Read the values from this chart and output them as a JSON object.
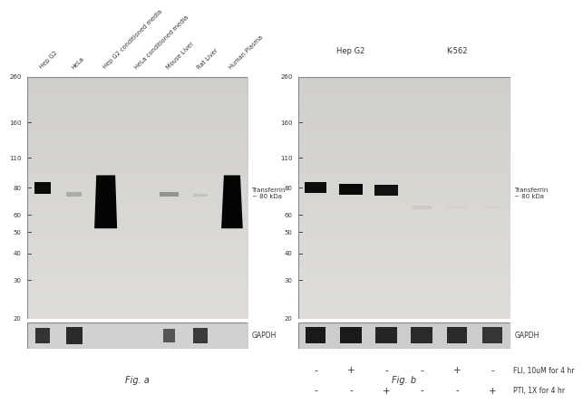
{
  "bg_color": "#ffffff",
  "panel_bg_light": "#d8d5cf",
  "panel_bg_main": "#ccc9c2",
  "gapdh_bg": "#b8b5ae",
  "fig_a_label": "Fig. a",
  "fig_b_label": "Fig. b",
  "fig_a_cols": [
    "Hep G2",
    "HeLa",
    "Hep G2 conditioned media",
    "HeLa conditioned media",
    "Mouse Liver",
    "Rat Liver",
    "Human Plasma"
  ],
  "fig_b_fli": [
    "-",
    "+",
    "-",
    "-",
    "+",
    "-"
  ],
  "fig_b_pti": [
    "-",
    "-",
    "+",
    "-",
    "-",
    "+"
  ],
  "mw_vals": [
    260,
    160,
    110,
    80,
    60,
    50,
    40,
    30,
    20
  ],
  "transferrin_label": "Transferrin\n~ 80 kDa",
  "gapdh_label": "GAPDH",
  "fli_label": "FLI, 10uM for 4 hr",
  "pti_label": "PTI, 1X for 4 hr",
  "hepg2_label": "Hep G2",
  "k562_label": "K-562"
}
